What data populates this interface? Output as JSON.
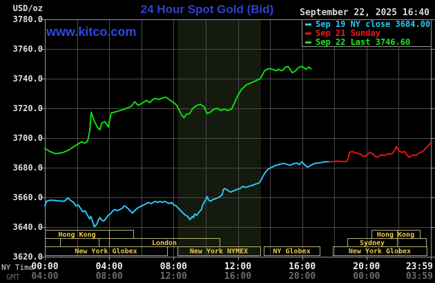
{
  "header": {
    "unit_label": "USD/oz",
    "title": "24 Hour Spot Gold (Bid)",
    "datetime": "September 22, 2025 16:40",
    "watermark": "www.kitco.com"
  },
  "axes": {
    "ny_caption": "NY Time",
    "gmt_caption": "GMT",
    "y_tick_labels": [
      "3780.0",
      "3760.0",
      "3740.0",
      "3720.0",
      "3700.0",
      "3680.0",
      "3660.0",
      "3640.0",
      "3620.0"
    ]
  },
  "legend": [
    {
      "label": "Sep 19 NY close 3684.00",
      "color": "#2dc7f4"
    },
    {
      "label": "Sep 21 Sunday",
      "color": "#f21717"
    },
    {
      "label": "Sep 22 Last 3746.60",
      "color": "#21e421"
    }
  ],
  "colors": {
    "background": "#000000",
    "grid": "#4b4b4b",
    "border": "#989898",
    "nymex_band": "#141a0e",
    "session_box_border": "#b3b377",
    "session_text": "#eec84a",
    "series_prev_close": "#2dc7f4",
    "series_sunday": "#ee1111",
    "series_today": "#0ce00c",
    "title_blue": "#2f40d2"
  },
  "sessions": [
    {
      "row": 1,
      "boxes": [
        {
          "h1": 0,
          "h2": 3.99,
          "label": "Hong Kong"
        },
        {
          "h1": 3.99,
          "h2": 5.5,
          "label": ""
        },
        {
          "h1": 20.31,
          "h2": 23.31,
          "label": "Hong Kong",
          "divider": 21.9
        }
      ]
    },
    {
      "row": 2,
      "boxes": [
        {
          "h1": 0,
          "h2": 0.94,
          "label": ""
        },
        {
          "h1": 0.94,
          "h2": 3.35,
          "label": ""
        },
        {
          "h1": 3.99,
          "h2": 10.86,
          "label": "London"
        },
        {
          "h1": 18.8,
          "h2": 21.9,
          "label": "Sydney"
        },
        {
          "h1": 21.9,
          "h2": 23.7,
          "label": ""
        }
      ]
    },
    {
      "row": 3,
      "boxes": [
        {
          "h1": 0,
          "h2": 7.6,
          "label": "New York Globex"
        },
        {
          "h1": 8.24,
          "h2": 13.4,
          "label": "New York NYMEX"
        },
        {
          "h1": 13.61,
          "h2": 17.09,
          "label": "NY Globex"
        },
        {
          "h1": 17.9,
          "h2": 23.74,
          "label": "New York Globex"
        }
      ]
    }
  ],
  "chart_data": {
    "type": "line",
    "title": "24 Hour Spot Gold (Bid)",
    "ylabel": "USD/oz",
    "y_axis": {
      "range": [
        3620,
        3780
      ],
      "tick_step": 20
    },
    "x_axis": {
      "unit": "hours, NY time",
      "range": [
        0,
        24
      ],
      "grid_step_hours": 2,
      "ticks": [
        {
          "h": 0,
          "ny": "00:00",
          "gmt": "04:00"
        },
        {
          "h": 4,
          "ny": "04:00",
          "gmt": "08:00"
        },
        {
          "h": 8,
          "ny": "08:00",
          "gmt": "12:00"
        },
        {
          "h": 12,
          "ny": "12:00",
          "gmt": "16:00"
        },
        {
          "h": 16,
          "ny": "16:00",
          "gmt": "20:00"
        },
        {
          "h": 20,
          "ny": "20:00",
          "gmt": "00:00"
        },
        {
          "h": 24,
          "ny": "23:59",
          "gmt": "03:59"
        }
      ]
    },
    "grid": true,
    "legend_position": "top-right",
    "shaded_band_hours": {
      "h1": 8.24,
      "h2": 13.45,
      "note": "New York NYMEX session shading"
    },
    "series": [
      {
        "name": "Sep 19 NY close 3684.00",
        "close": 3684.0,
        "color": "#2dc7f4",
        "points": [
          [
            0,
            3654.3
          ],
          [
            0.1,
            3657.4
          ],
          [
            0.36,
            3658.2
          ],
          [
            0.79,
            3657.7
          ],
          [
            1.21,
            3657.4
          ],
          [
            1.43,
            3659.7
          ],
          [
            1.57,
            3658.2
          ],
          [
            1.79,
            3656.6
          ],
          [
            1.93,
            3654.3
          ],
          [
            2.07,
            3655
          ],
          [
            2.22,
            3652.6
          ],
          [
            2.36,
            3650.3
          ],
          [
            2.5,
            3651
          ],
          [
            2.65,
            3648
          ],
          [
            2.79,
            3645.6
          ],
          [
            2.86,
            3647.2
          ],
          [
            3,
            3642.6
          ],
          [
            3.08,
            3640.2
          ],
          [
            3.22,
            3641.8
          ],
          [
            3.36,
            3645.6
          ],
          [
            3.43,
            3646.4
          ],
          [
            3.51,
            3644.9
          ],
          [
            3.65,
            3644.1
          ],
          [
            3.79,
            3645.6
          ],
          [
            3.94,
            3648
          ],
          [
            4.08,
            3648.8
          ],
          [
            4.22,
            3651
          ],
          [
            4.37,
            3651.8
          ],
          [
            4.51,
            3651
          ],
          [
            4.65,
            3651.8
          ],
          [
            4.8,
            3652.6
          ],
          [
            4.94,
            3654.3
          ],
          [
            5.08,
            3653.4
          ],
          [
            5.23,
            3651.8
          ],
          [
            5.37,
            3650.3
          ],
          [
            5.44,
            3649.5
          ],
          [
            5.58,
            3651
          ],
          [
            5.73,
            3652.6
          ],
          [
            5.87,
            3653.4
          ],
          [
            6.01,
            3654.3
          ],
          [
            6.16,
            3655
          ],
          [
            6.3,
            3655.8
          ],
          [
            6.44,
            3656.6
          ],
          [
            6.59,
            3655.8
          ],
          [
            6.73,
            3656.6
          ],
          [
            6.87,
            3657.4
          ],
          [
            7.02,
            3656.6
          ],
          [
            7.16,
            3657.4
          ],
          [
            7.3,
            3656.6
          ],
          [
            7.45,
            3657.4
          ],
          [
            7.59,
            3656.6
          ],
          [
            7.73,
            3655.8
          ],
          [
            7.88,
            3656.6
          ],
          [
            8.02,
            3655
          ],
          [
            8.16,
            3654.3
          ],
          [
            8.31,
            3652.6
          ],
          [
            8.45,
            3651
          ],
          [
            8.59,
            3649.5
          ],
          [
            8.74,
            3648
          ],
          [
            8.88,
            3647.2
          ],
          [
            9.02,
            3645
          ],
          [
            9.17,
            3647.2
          ],
          [
            9.24,
            3646.4
          ],
          [
            9.31,
            3648.8
          ],
          [
            9.45,
            3648
          ],
          [
            9.6,
            3650.3
          ],
          [
            9.74,
            3652
          ],
          [
            9.81,
            3654.7
          ],
          [
            9.9,
            3656.6
          ],
          [
            10.02,
            3659
          ],
          [
            10.1,
            3660.5
          ],
          [
            10.17,
            3658.2
          ],
          [
            10.31,
            3657.4
          ],
          [
            10.45,
            3658.5
          ],
          [
            10.6,
            3659
          ],
          [
            10.74,
            3659.7
          ],
          [
            10.89,
            3660.5
          ],
          [
            11.03,
            3662
          ],
          [
            11.1,
            3665.2
          ],
          [
            11.17,
            3665.9
          ],
          [
            11.32,
            3665.2
          ],
          [
            11.53,
            3663.6
          ],
          [
            11.75,
            3664.4
          ],
          [
            11.89,
            3665.2
          ],
          [
            12.11,
            3665.9
          ],
          [
            12.32,
            3667.5
          ],
          [
            12.47,
            3666.7
          ],
          [
            12.68,
            3667.5
          ],
          [
            12.9,
            3668.2
          ],
          [
            13.11,
            3669
          ],
          [
            13.33,
            3669.8
          ],
          [
            13.46,
            3672.1
          ],
          [
            13.61,
            3675.2
          ],
          [
            13.75,
            3677.6
          ],
          [
            13.9,
            3679.2
          ],
          [
            14.04,
            3679.9
          ],
          [
            14.18,
            3680.7
          ],
          [
            14.33,
            3681.5
          ],
          [
            14.61,
            3682.3
          ],
          [
            14.82,
            3683
          ],
          [
            15.04,
            3682.3
          ],
          [
            15.25,
            3681.6
          ],
          [
            15.47,
            3682.8
          ],
          [
            15.68,
            3683.2
          ],
          [
            15.81,
            3682
          ],
          [
            15.98,
            3684
          ],
          [
            16.11,
            3682.4
          ],
          [
            16.32,
            3680.4
          ],
          [
            16.54,
            3681.6
          ],
          [
            16.75,
            3682.8
          ],
          [
            16.97,
            3683.2
          ],
          [
            17.18,
            3683.5
          ],
          [
            17.4,
            3684
          ],
          [
            17.69,
            3684
          ]
        ]
      },
      {
        "name": "Sep 21 Sunday",
        "color": "#ee1111",
        "points": [
          [
            17.69,
            3684
          ],
          [
            17.9,
            3684.1
          ],
          [
            18.12,
            3684.5
          ],
          [
            18.4,
            3684.2
          ],
          [
            18.77,
            3684.3
          ],
          [
            18.86,
            3686.5
          ],
          [
            18.94,
            3690.3
          ],
          [
            19.11,
            3691
          ],
          [
            19.24,
            3690.3
          ],
          [
            19.54,
            3689.5
          ],
          [
            19.68,
            3688.7
          ],
          [
            19.82,
            3687.6
          ],
          [
            19.96,
            3687.9
          ],
          [
            20.1,
            3689.5
          ],
          [
            20.24,
            3690.3
          ],
          [
            20.37,
            3689.5
          ],
          [
            20.51,
            3687.9
          ],
          [
            20.66,
            3687.1
          ],
          [
            20.79,
            3687.9
          ],
          [
            20.94,
            3688.7
          ],
          [
            21.08,
            3688.3
          ],
          [
            21.21,
            3688.7
          ],
          [
            21.36,
            3689.5
          ],
          [
            21.5,
            3689.2
          ],
          [
            21.64,
            3689.8
          ],
          [
            21.78,
            3692.6
          ],
          [
            21.86,
            3694.2
          ],
          [
            21.94,
            3692.6
          ],
          [
            22.07,
            3691
          ],
          [
            22.21,
            3690.3
          ],
          [
            22.36,
            3691
          ],
          [
            22.5,
            3688.7
          ],
          [
            22.64,
            3687.1
          ],
          [
            22.78,
            3687.9
          ],
          [
            22.93,
            3688.7
          ],
          [
            23.07,
            3688.3
          ],
          [
            23.21,
            3689.5
          ],
          [
            23.35,
            3690.3
          ],
          [
            23.49,
            3691
          ],
          [
            23.64,
            3692.6
          ],
          [
            23.78,
            3694.2
          ],
          [
            23.92,
            3695.8
          ],
          [
            23.98,
            3696.6
          ]
        ]
      },
      {
        "name": "Sep 22 Last 3746.60",
        "last": 3746.6,
        "color": "#0ce00c",
        "points": [
          [
            0,
            3693
          ],
          [
            0.3,
            3691
          ],
          [
            0.64,
            3689.5
          ],
          [
            1.07,
            3690
          ],
          [
            1.5,
            3692
          ],
          [
            1.85,
            3694.5
          ],
          [
            2.28,
            3697.5
          ],
          [
            2.49,
            3696.5
          ],
          [
            2.66,
            3698
          ],
          [
            2.79,
            3705
          ],
          [
            2.88,
            3717.5
          ],
          [
            3.05,
            3712
          ],
          [
            3.26,
            3707.5
          ],
          [
            3.43,
            3705.5
          ],
          [
            3.52,
            3710
          ],
          [
            3.74,
            3711
          ],
          [
            3.95,
            3707.5
          ],
          [
            4.12,
            3716.9
          ],
          [
            4.34,
            3717.5
          ],
          [
            4.51,
            3718
          ],
          [
            4.81,
            3719
          ],
          [
            5.07,
            3720
          ],
          [
            5.37,
            3721.3
          ],
          [
            5.58,
            3724.5
          ],
          [
            5.8,
            3722
          ],
          [
            6.1,
            3723.8
          ],
          [
            6.31,
            3725.4
          ],
          [
            6.53,
            3723.8
          ],
          [
            6.7,
            3726
          ],
          [
            6.87,
            3726.7
          ],
          [
            7.08,
            3726
          ],
          [
            7.51,
            3727.6
          ],
          [
            7.81,
            3725.4
          ],
          [
            8.03,
            3723.8
          ],
          [
            8.2,
            3722
          ],
          [
            8.3,
            3720
          ],
          [
            8.5,
            3715.5
          ],
          [
            8.65,
            3713.7
          ],
          [
            8.8,
            3716
          ],
          [
            9,
            3716.5
          ],
          [
            9.2,
            3720
          ],
          [
            9.42,
            3721.8
          ],
          [
            9.66,
            3722.8
          ],
          [
            9.9,
            3721
          ],
          [
            10.08,
            3716.5
          ],
          [
            10.3,
            3717.5
          ],
          [
            10.51,
            3719.5
          ],
          [
            10.73,
            3720
          ],
          [
            10.94,
            3718.5
          ],
          [
            11.16,
            3719.5
          ],
          [
            11.37,
            3718.5
          ],
          [
            11.6,
            3719.5
          ],
          [
            11.72,
            3722
          ],
          [
            11.9,
            3726.5
          ],
          [
            12.02,
            3729
          ],
          [
            12.15,
            3731.5
          ],
          [
            12.24,
            3733
          ],
          [
            12.54,
            3736
          ],
          [
            12.8,
            3737
          ],
          [
            13.1,
            3738.5
          ],
          [
            13.23,
            3739.2
          ],
          [
            13.4,
            3740
          ],
          [
            13.66,
            3745.4
          ],
          [
            13.83,
            3746.4
          ],
          [
            13.96,
            3746.8
          ],
          [
            14.09,
            3746.4
          ],
          [
            14.26,
            3745.9
          ],
          [
            14.39,
            3745.4
          ],
          [
            14.52,
            3746.4
          ],
          [
            14.69,
            3745.4
          ],
          [
            14.82,
            3745.9
          ],
          [
            14.95,
            3747.8
          ],
          [
            15.12,
            3748.2
          ],
          [
            15.25,
            3746.4
          ],
          [
            15.38,
            3744
          ],
          [
            15.55,
            3745
          ],
          [
            15.68,
            3746.4
          ],
          [
            15.81,
            3747.8
          ],
          [
            15.98,
            3748.2
          ],
          [
            16.11,
            3747.3
          ],
          [
            16.24,
            3746.4
          ],
          [
            16.41,
            3747.8
          ],
          [
            16.55,
            3746.6
          ]
        ]
      }
    ]
  }
}
